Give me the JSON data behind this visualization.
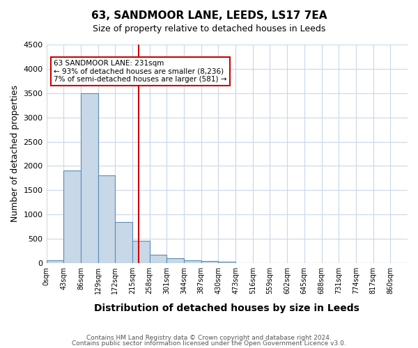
{
  "title": "63, SANDMOOR LANE, LEEDS, LS17 7EA",
  "subtitle": "Size of property relative to detached houses in Leeds",
  "xlabel": "Distribution of detached houses by size in Leeds",
  "ylabel": "Number of detached properties",
  "bin_labels": [
    "0sqm",
    "43sqm",
    "86sqm",
    "129sqm",
    "172sqm",
    "215sqm",
    "258sqm",
    "301sqm",
    "344sqm",
    "387sqm",
    "430sqm",
    "473sqm",
    "516sqm",
    "559sqm",
    "602sqm",
    "645sqm",
    "688sqm",
    "731sqm",
    "774sqm",
    "817sqm",
    "860sqm"
  ],
  "bar_heights": [
    50,
    1900,
    3500,
    1800,
    850,
    450,
    175,
    100,
    60,
    40,
    25,
    5,
    0,
    0,
    0,
    0,
    0,
    0,
    0,
    0,
    0
  ],
  "bar_color": "#c8d8e8",
  "bar_edge_color": "#5a8db5",
  "ylim": [
    0,
    4500
  ],
  "yticks": [
    0,
    500,
    1000,
    1500,
    2000,
    2500,
    3000,
    3500,
    4000,
    4500
  ],
  "property_size": 231,
  "property_bin_index": 5.535,
  "vline_color": "#cc0000",
  "annotation_text": "63 SANDMOOR LANE: 231sqm\n← 93% of detached houses are smaller (8,236)\n7% of semi-detached houses are larger (581) →",
  "annotation_box_color": "#cc0000",
  "footnote1": "Contains HM Land Registry data © Crown copyright and database right 2024.",
  "footnote2": "Contains public sector information licensed under the Open Government Licence v3.0.",
  "background_color": "#ffffff",
  "grid_color": "#c8d8e8"
}
